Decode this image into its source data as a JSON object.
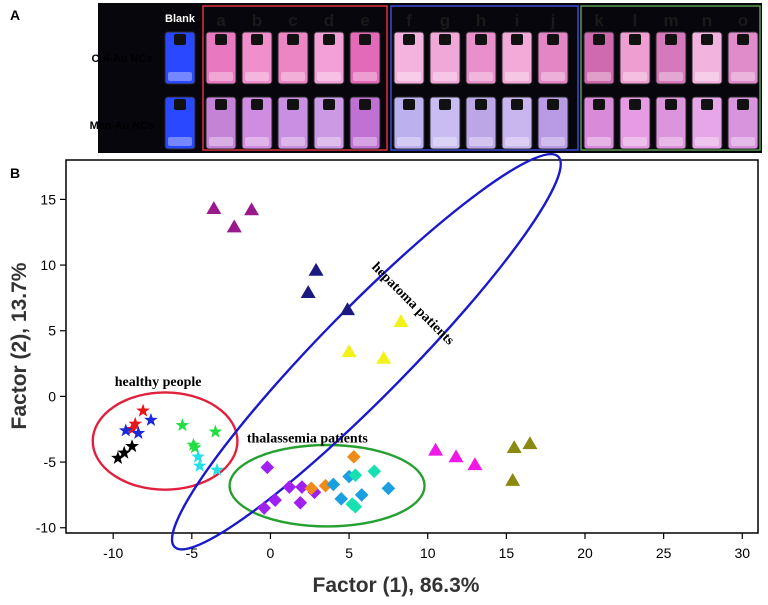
{
  "panel_a": {
    "label": "A",
    "blank_label": "Blank",
    "row_labels": [
      "Col-Au NCs",
      "Mac-Au NCs"
    ],
    "sensor_letters": [
      "a",
      "b",
      "c",
      "d",
      "e",
      "f",
      "g",
      "h",
      "i",
      "j",
      "k",
      "l",
      "m",
      "n",
      "o"
    ],
    "group_colors": [
      "#e0303c",
      "#3a4bd8",
      "#5a9a50"
    ],
    "vial_colors": {
      "blank": "#2a48ff",
      "row1": [
        "#e879c0",
        "#f08fcc",
        "#ec85c4",
        "#f2a0d6",
        "#e26ab8",
        "#f4b2df",
        "#f0a8d8",
        "#e990cc",
        "#f2aad8",
        "#e486c6",
        "#cf6ab0",
        "#ef9ed2",
        "#d578bc",
        "#f2b4de",
        "#e08ccb"
      ],
      "row2": [
        "#c583d8",
        "#d08ce0",
        "#c98fe0",
        "#cc9ae4",
        "#c171d4",
        "#bcb0ee",
        "#c8bcf2",
        "#bda6e8",
        "#c9b6ee",
        "#b99ae4",
        "#d98ad8",
        "#e59ce2",
        "#dc94dc",
        "#e6a6e8",
        "#d894dc"
      ]
    }
  },
  "chart_data": {
    "type": "scatter",
    "panel_label": "B",
    "xlabel": "Factor (1), 86.3%",
    "ylabel": "Factor (2), 13.7%",
    "xlim": [
      -13,
      31
    ],
    "ylim": [
      -10.4,
      18
    ],
    "xticks": [
      -10,
      -5,
      0,
      5,
      10,
      15,
      20,
      25,
      30
    ],
    "yticks": [
      -10,
      -5,
      0,
      5,
      10,
      15
    ],
    "grid": false,
    "groups": [
      {
        "name": "healthy people",
        "ellipse_color": "#e0203c",
        "ellipse": {
          "cx": -6.7,
          "cy": -3.4,
          "rx": 4.6,
          "ry": 3.7,
          "angle_deg": 0
        }
      },
      {
        "name": "thalassemia patients",
        "ellipse_color": "#26a030",
        "ellipse": {
          "cx": 3.6,
          "cy": -6.8,
          "rx": 6.2,
          "ry": 3.1,
          "angle_deg": 0
        }
      },
      {
        "name": "hepatoma patients",
        "ellipse_color": "#1a1ac8",
        "ellipse": {
          "cx": 6.1,
          "cy": 3.4,
          "rx": 17.4,
          "ry": 3.35,
          "angle_deg": -45.5
        }
      }
    ],
    "series": [
      {
        "name": "healthy-red",
        "marker": "star",
        "color": "#e81818",
        "x": [
          -8.1,
          -8.6,
          -8.8
        ],
        "y": [
          -1.1,
          -2.1,
          -2.5
        ]
      },
      {
        "name": "healthy-blue",
        "marker": "star",
        "color": "#1a2ad8",
        "x": [
          -7.6,
          -9.2,
          -8.4
        ],
        "y": [
          -1.8,
          -2.6,
          -2.8
        ]
      },
      {
        "name": "healthy-black",
        "marker": "star",
        "color": "#000000",
        "x": [
          -8.8,
          -9.3,
          -9.7
        ],
        "y": [
          -3.8,
          -4.3,
          -4.7
        ]
      },
      {
        "name": "healthy-green",
        "marker": "star",
        "color": "#22dd44",
        "x": [
          -5.6,
          -3.5,
          -4.9,
          -4.8
        ],
        "y": [
          -2.2,
          -2.7,
          -3.7,
          -3.9
        ]
      },
      {
        "name": "healthy-cyan",
        "marker": "star",
        "color": "#22e0e8",
        "x": [
          -4.6,
          -3.4,
          -4.5
        ],
        "y": [
          -4.6,
          -5.6,
          -5.3
        ]
      },
      {
        "name": "thal-purple",
        "marker": "diamond",
        "color": "#a020f0",
        "x": [
          -0.2,
          1.2,
          0.3,
          2.0,
          1.9,
          2.8,
          -0.4
        ],
        "y": [
          -5.4,
          -6.9,
          -7.9,
          -6.9,
          -8.1,
          -7.3,
          -8.5
        ]
      },
      {
        "name": "thal-orange",
        "marker": "diamond",
        "color": "#f08a18",
        "x": [
          2.6,
          3.5,
          5.3
        ],
        "y": [
          -7.0,
          -6.8,
          -4.6
        ]
      },
      {
        "name": "thal-cyan",
        "marker": "diamond",
        "color": "#1aa0e0",
        "x": [
          4.0,
          5.0,
          4.5,
          5.8,
          7.5
        ],
        "y": [
          -6.7,
          -6.1,
          -7.8,
          -7.5,
          -7.0
        ]
      },
      {
        "name": "thal-teal",
        "marker": "diamond",
        "color": "#18e0b0",
        "x": [
          5.4,
          6.6,
          5.2,
          5.4
        ],
        "y": [
          -6.0,
          -5.7,
          -8.2,
          -8.4
        ]
      },
      {
        "name": "hep-purple",
        "marker": "triangle",
        "color": "#9a1a8c",
        "x": [
          -3.6,
          -2.3,
          -1.2
        ],
        "y": [
          14.3,
          12.9,
          14.2
        ]
      },
      {
        "name": "hep-navy",
        "marker": "triangle",
        "color": "#1a1a80",
        "x": [
          2.9,
          2.4,
          4.9
        ],
        "y": [
          9.6,
          7.9,
          6.6
        ]
      },
      {
        "name": "hep-yellow",
        "marker": "triangle",
        "color": "#f2f21a",
        "x": [
          8.3,
          5.0,
          7.2
        ],
        "y": [
          5.7,
          3.4,
          2.9
        ]
      },
      {
        "name": "hep-magenta",
        "marker": "triangle",
        "color": "#f018e8",
        "x": [
          10.5,
          11.8,
          13.0
        ],
        "y": [
          -4.1,
          -4.6,
          -5.2
        ]
      },
      {
        "name": "hep-olive",
        "marker": "triangle",
        "color": "#8a8a10",
        "x": [
          15.5,
          16.5,
          15.4
        ],
        "y": [
          -3.9,
          -3.6,
          -6.4
        ]
      }
    ],
    "annotations": [
      {
        "text": "healthy people",
        "x": -9.9,
        "y": 0.8,
        "rotation_deg": 0
      },
      {
        "text": "thalassemia patients",
        "x": -1.5,
        "y": -3.5,
        "rotation_deg": 0
      },
      {
        "text": "hepatoma patients",
        "x": 6.4,
        "y": 9.8,
        "rotation_deg": 45
      }
    ]
  }
}
